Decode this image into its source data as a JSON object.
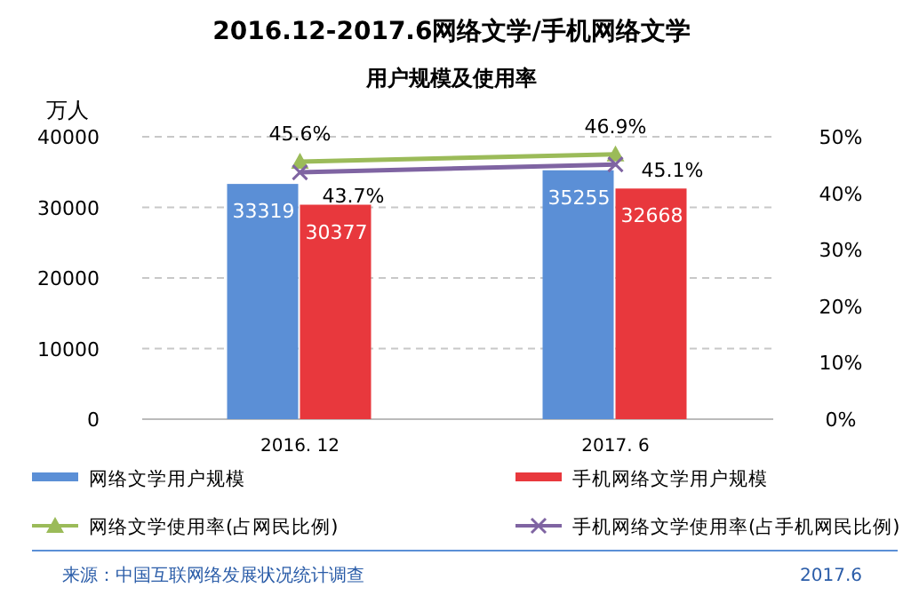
{
  "chart_data": {
    "type": "bar",
    "title": "2016.12-2017.6网络文学/手机网络文学",
    "subtitle": "用户规模及使用率",
    "ylabel": "万人",
    "categories": [
      "2016. 12",
      "2017. 6"
    ],
    "series": [
      {
        "name": "网络文学用户规模",
        "color": "#5b8fd6",
        "values": [
          33319,
          35255
        ]
      },
      {
        "name": "手机网络文学用户规模",
        "color": "#e8383d",
        "values": [
          30377,
          32668
        ]
      },
      {
        "name": "网络文学使用率(占网民比例)",
        "type": "line",
        "axis": "y2",
        "marker": "triangle",
        "color": "#9bbb59",
        "values": [
          45.6,
          46.9
        ],
        "value_labels": [
          "45.6%",
          "46.9%"
        ]
      },
      {
        "name": "手机网络文学使用率(占手机网民比例)",
        "type": "line",
        "axis": "y2",
        "marker": "cross",
        "color": "#7f64a2",
        "values": [
          43.7,
          45.1
        ],
        "value_labels": [
          "43.7%",
          "45.1%"
        ]
      }
    ],
    "ylim": [
      0,
      40000
    ],
    "yticks": [
      0,
      10000,
      20000,
      30000,
      40000
    ],
    "y2lim": [
      0,
      50
    ],
    "y2ticks": [
      {
        "value": 0,
        "label": "0%"
      },
      {
        "value": 10,
        "label": "10%"
      },
      {
        "value": 20,
        "label": "20%"
      },
      {
        "value": 30,
        "label": "30%"
      },
      {
        "value": 40,
        "label": "40%"
      },
      {
        "value": 50,
        "label": "50%"
      }
    ],
    "data_labels": true,
    "grid": "y",
    "legend": "bottom",
    "annotations": [
      "来源：中国互联网络发展状况统计调查",
      "2017.6"
    ]
  }
}
